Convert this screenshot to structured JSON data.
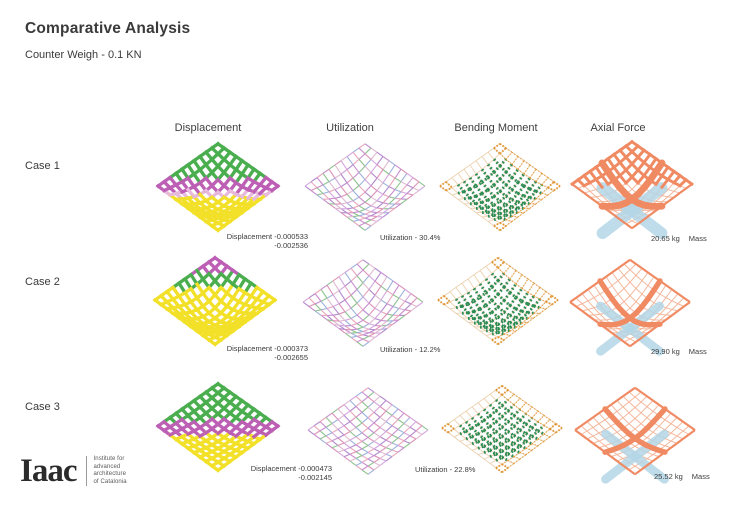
{
  "page": {
    "title": "Comparative Analysis",
    "subtitle": "Counter Weigh - 0.1 KN"
  },
  "columns": [
    "Displacement",
    "Utilization",
    "Bending Moment",
    "Axial Force"
  ],
  "rows": [
    {
      "label": "Case 1",
      "displacement": {
        "line1": "Displacement -0.000533",
        "line2": "-0.002536"
      },
      "utilization": "Utilization - 30.4%",
      "mass": {
        "value": "20.65 kg",
        "label": "Mass"
      }
    },
    {
      "label": "Case 2",
      "displacement": {
        "line1": "Displacement -0.000373",
        "line2": "-0.002655"
      },
      "utilization": "Utilization - 12.2%",
      "mass": {
        "value": "29.90 kg",
        "label": "Mass"
      }
    },
    {
      "label": "Case 3",
      "displacement": {
        "line1": "Displacement -0.000473",
        "line2": "-0.002145"
      },
      "utilization": "Utilization - 22.8%",
      "mass": {
        "value": "25.52 kg",
        "label": "Mass"
      }
    }
  ],
  "logo": {
    "wordmark": "Iaac",
    "tagline_lines": [
      "Institute for",
      "advanced",
      "architecture",
      "of Catalonia"
    ]
  },
  "palette": {
    "disp_green": "#4aae4f",
    "disp_magenta": "#bd5fb5",
    "disp_pink": "#e7b9dd",
    "disp_yellow": "#f2e029",
    "util_palette": [
      "#dd93b8",
      "#c98fd0",
      "#b48bd0",
      "#e8a8bc",
      "#d4a8e0",
      "#9fb4dd",
      "#e0bcd2",
      "#8fc48f"
    ],
    "bend_frame": "#ecd0ae",
    "bend_green": "#2c8c55",
    "bend_orange": "#e2952f",
    "axial_frame": "#f4b79c",
    "axial_salmon": "#f08a63",
    "axial_blue": "#b3d6e6"
  },
  "diagrams": [
    [
      {
        "style": "displacement",
        "sag": 16,
        "bands": [
          [
            0.34,
            "green"
          ],
          [
            0.46,
            "magenta"
          ],
          [
            0.52,
            "pink"
          ],
          [
            1.01,
            "yellow"
          ]
        ]
      },
      {
        "style": "utilization",
        "sag": 16
      },
      {
        "style": "bending",
        "sag": 15
      },
      {
        "style": "axial",
        "sag": 15,
        "heavy": true
      }
    ],
    [
      {
        "style": "displacement",
        "sag": 18,
        "bands": [
          [
            0.16,
            "magenta"
          ],
          [
            0.3,
            "green"
          ],
          [
            1.01,
            "yellow"
          ]
        ]
      },
      {
        "style": "utilization",
        "sag": 18
      },
      {
        "style": "bending",
        "sag": 17
      },
      {
        "style": "axial",
        "sag": 16,
        "heavy": false
      }
    ],
    [
      {
        "style": "displacement",
        "sag": 7,
        "bands": [
          [
            0.36,
            "green"
          ],
          [
            0.5,
            "magenta"
          ],
          [
            1.01,
            "yellow"
          ]
        ]
      },
      {
        "style": "utilization",
        "sag": 7
      },
      {
        "style": "bending",
        "sag": 8
      },
      {
        "style": "axial",
        "sag": 8,
        "heavy": false
      }
    ]
  ]
}
